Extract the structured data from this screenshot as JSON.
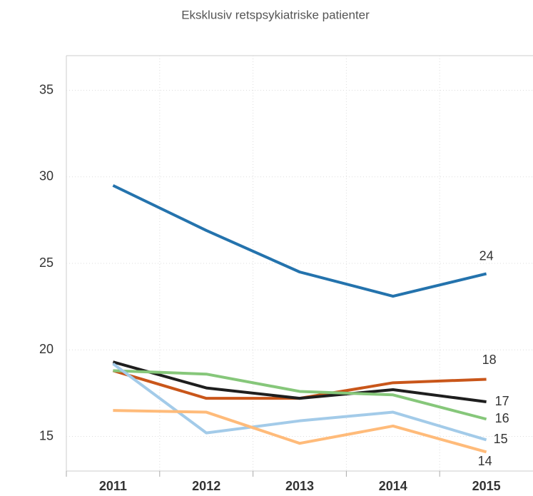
{
  "chart_data": {
    "type": "line",
    "title": "Eksklusiv retspsykiatriske patienter",
    "categories": [
      "2011",
      "2012",
      "2013",
      "2014",
      "2015"
    ],
    "series": [
      {
        "color": "#2473ad",
        "values": [
          29.5,
          26.9,
          24.5,
          23.1,
          24.4
        ],
        "value_labels": [
          null,
          null,
          null,
          null,
          "24"
        ]
      },
      {
        "color": "#c9561a",
        "values": [
          18.8,
          17.2,
          17.2,
          18.1,
          18.3
        ],
        "value_labels": [
          null,
          null,
          null,
          null,
          "18"
        ]
      },
      {
        "color": "#1e1e1e",
        "values": [
          19.3,
          17.8,
          17.2,
          17.7,
          17.0
        ],
        "value_labels": [
          null,
          null,
          null,
          null,
          "17"
        ]
      },
      {
        "color": "#86c77a",
        "values": [
          18.8,
          18.6,
          17.6,
          17.4,
          16.0
        ],
        "value_labels": [
          null,
          null,
          null,
          null,
          "16"
        ]
      },
      {
        "color": "#a3cbe9",
        "values": [
          19.2,
          15.2,
          15.9,
          16.4,
          14.8
        ],
        "value_labels": [
          null,
          null,
          null,
          null,
          "15"
        ]
      },
      {
        "color": "#ffbb7a",
        "values": [
          16.5,
          16.4,
          14.6,
          15.6,
          14.1
        ],
        "value_labels": [
          null,
          null,
          null,
          null,
          "14"
        ]
      }
    ],
    "ylim": [
      13,
      37
    ],
    "yticks": [
      15,
      20,
      25,
      30,
      35
    ],
    "grid": true
  }
}
